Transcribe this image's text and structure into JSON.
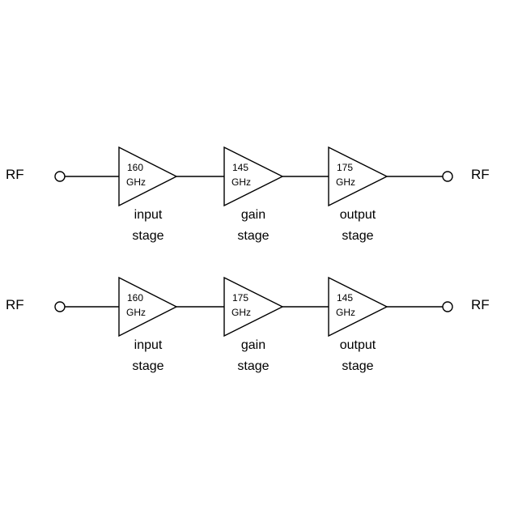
{
  "chains": [
    {
      "rf_in": "RF",
      "rf_out": "RF",
      "stages": [
        {
          "freq": "160",
          "unit": "GHz",
          "label_line1": "input",
          "label_line2": "stage"
        },
        {
          "freq": "145",
          "unit": "GHz",
          "label_line1": "gain",
          "label_line2": "stage"
        },
        {
          "freq": "175",
          "unit": "GHz",
          "label_line1": "output",
          "label_line2": "stage"
        }
      ]
    },
    {
      "rf_in": "RF",
      "rf_out": "RF",
      "stages": [
        {
          "freq": "160",
          "unit": "GHz",
          "label_line1": "input",
          "label_line2": "stage"
        },
        {
          "freq": "175",
          "unit": "GHz",
          "label_line1": "gain",
          "label_line2": "stage"
        },
        {
          "freq": "145",
          "unit": "GHz",
          "label_line1": "output",
          "label_line2": "stage"
        }
      ]
    }
  ],
  "colors": {
    "line": "#000000",
    "background": "#ffffff"
  }
}
